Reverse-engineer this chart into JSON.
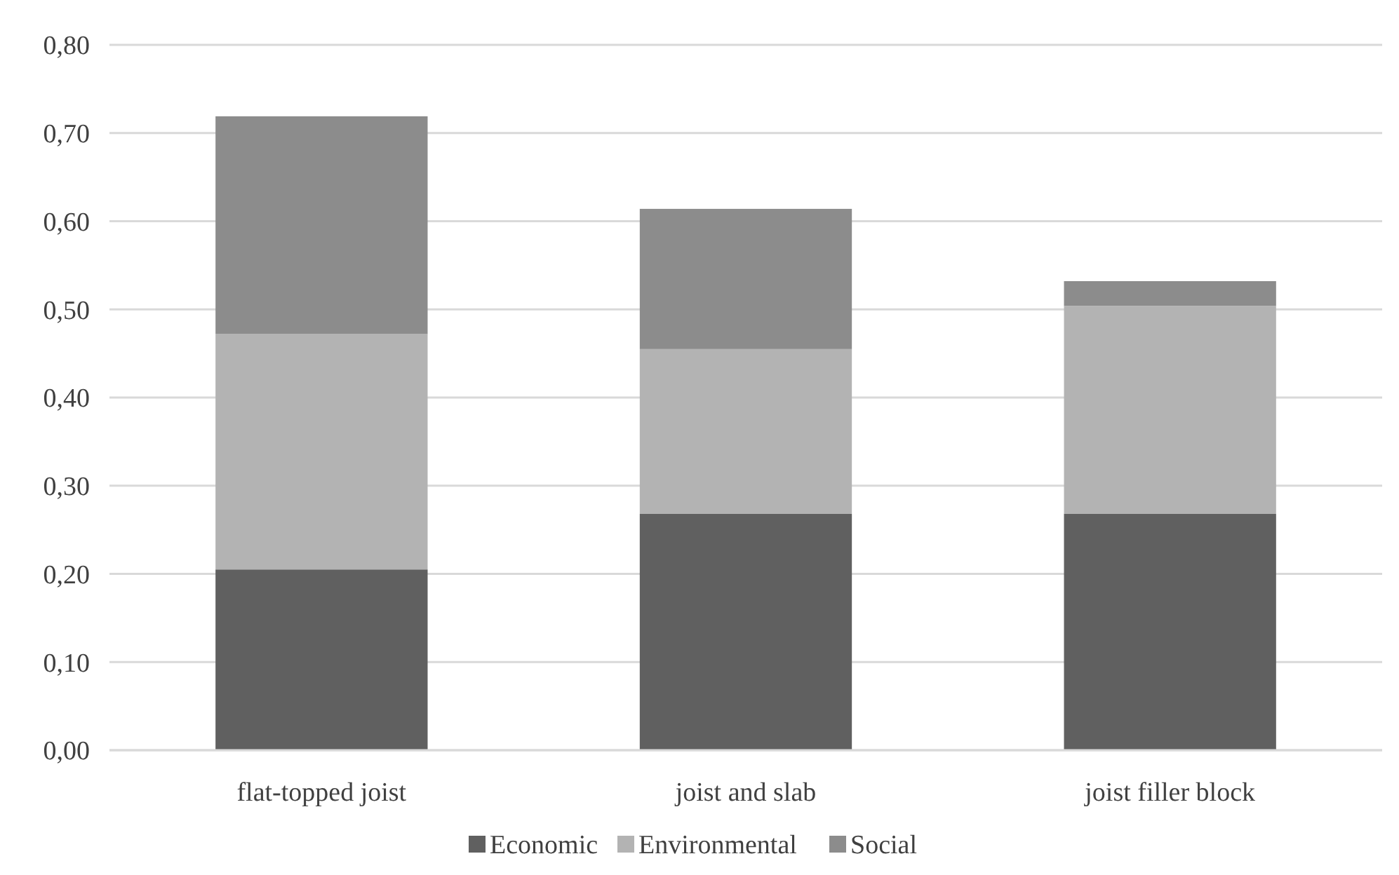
{
  "chart_data": {
    "type": "bar",
    "stacked": true,
    "categories": [
      "flat-topped joist",
      "joist and slab",
      "joist filler block"
    ],
    "series": [
      {
        "name": "Economic",
        "color": "#606060",
        "values": [
          0.205,
          0.268,
          0.268
        ]
      },
      {
        "name": "Environmental",
        "color": "#b3b3b3",
        "values": [
          0.267,
          0.187,
          0.236
        ]
      },
      {
        "name": "Social",
        "color": "#8c8c8c",
        "values": [
          0.247,
          0.159,
          0.028
        ]
      }
    ],
    "ylim": [
      0,
      0.8
    ],
    "yticks": [
      {
        "value": 0,
        "label": "0,00"
      },
      {
        "value": 0.1,
        "label": "0,10"
      },
      {
        "value": 0.2,
        "label": "0,20"
      },
      {
        "value": 0.3,
        "label": "0,30"
      },
      {
        "value": 0.4,
        "label": "0,40"
      },
      {
        "value": 0.5,
        "label": "0,50"
      },
      {
        "value": 0.6,
        "label": "0,60"
      },
      {
        "value": 0.7,
        "label": "0,70"
      },
      {
        "value": 0.8,
        "label": "0,80"
      }
    ],
    "grid": "y",
    "legend": "bottom"
  }
}
